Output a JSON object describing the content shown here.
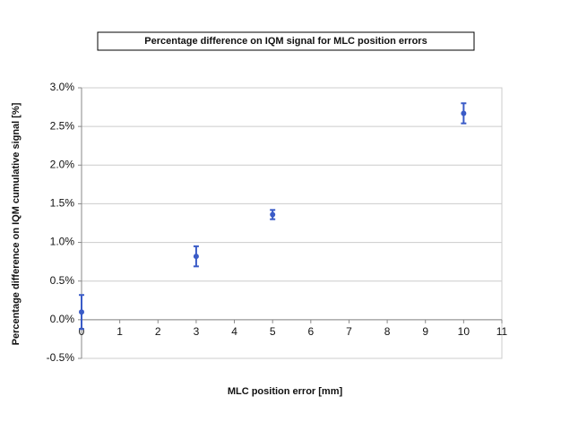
{
  "chart_data": {
    "type": "scatter",
    "title": "Percentage difference on IQM signal for MLC position errors",
    "x_label": "MLC position error [mm]",
    "y_label": "Percentage difference on IQM cumulative signal [%]",
    "series": [
      {
        "color": "#3a5bc7",
        "x": [
          0,
          3,
          5,
          10
        ],
        "values": [
          0.1,
          0.82,
          1.36,
          2.67
        ],
        "errors": [
          0.22,
          0.13,
          0.06,
          0.13
        ]
      }
    ],
    "xlim": [
      0,
      11
    ],
    "xticks": [
      0,
      1,
      2,
      3,
      4,
      5,
      6,
      7,
      8,
      9,
      10,
      11
    ],
    "ylim": [
      -0.5,
      3.0
    ],
    "yticks": [
      {
        "value": -0.5,
        "label": "-0.5%"
      },
      {
        "value": 0,
        "label": "0.0%"
      },
      {
        "value": 0.5,
        "label": "0.5%"
      },
      {
        "value": 1.0,
        "label": "1.0%"
      },
      {
        "value": 1.5,
        "label": "1.5%"
      },
      {
        "value": 2.0,
        "label": "2.0%"
      },
      {
        "value": 2.5,
        "label": "2.5%"
      },
      {
        "value": 3.0,
        "label": "3.0%"
      }
    ],
    "grid": true
  }
}
